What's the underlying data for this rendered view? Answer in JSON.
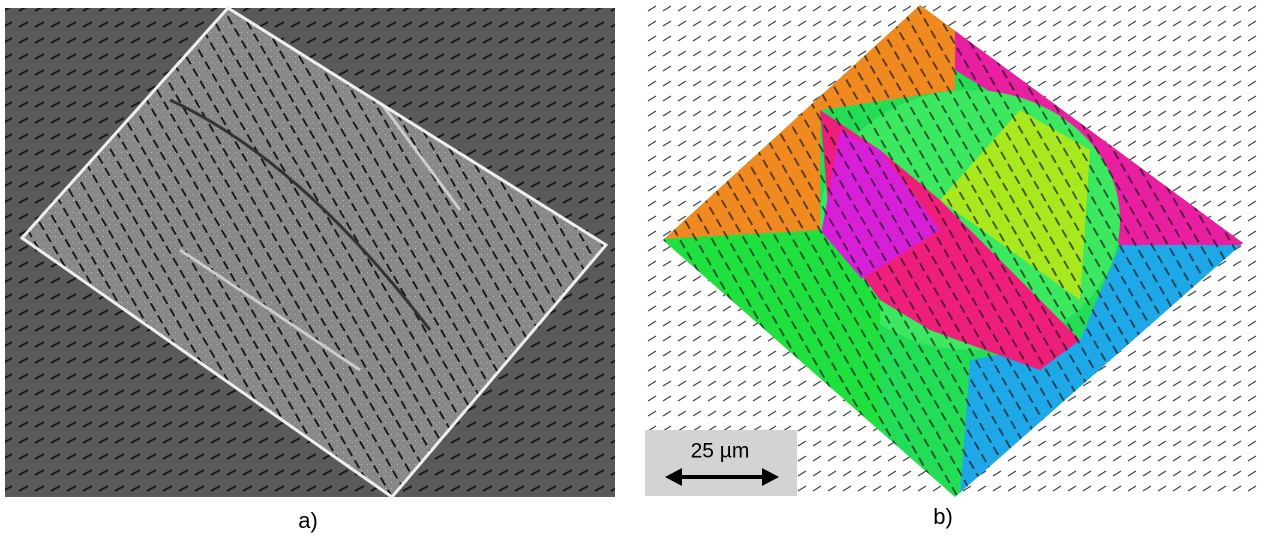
{
  "panels": [
    {
      "label": "a)"
    },
    {
      "label": "b)",
      "scale_bar": "25 µm"
    }
  ]
}
